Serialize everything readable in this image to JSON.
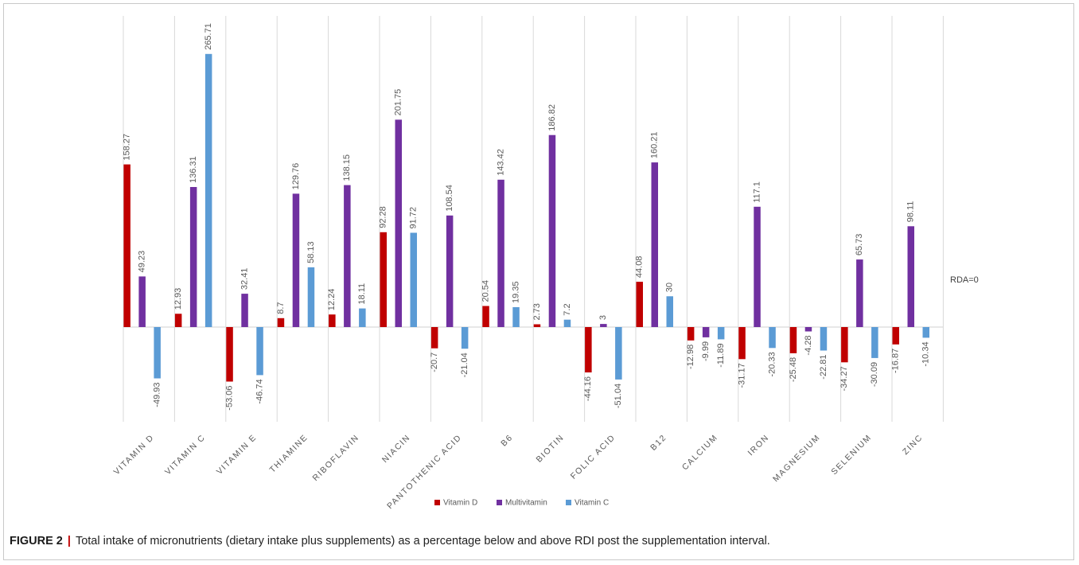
{
  "chart_data": {
    "type": "bar",
    "categories": [
      "VITAMIN D",
      "VITAMIN C",
      "VITAMIN E",
      "THIAMINE",
      "RIBOFLAVIN",
      "NIACIN",
      "PANTOTHENIC ACID",
      "B6",
      "BIOTIN",
      "FOLIC ACID",
      "B12",
      "CALCIUM",
      "IRON",
      "MAGNESIUM",
      "SELENIUM",
      "ZINC"
    ],
    "series": [
      {
        "name": "Vitamin D",
        "color": "#c00000",
        "values": [
          158.27,
          12.93,
          -53.06,
          8.7,
          12.24,
          92.28,
          -20.7,
          20.54,
          2.73,
          -44.16,
          44.08,
          -12.98,
          -31.17,
          -25.48,
          -34.27,
          -16.87
        ]
      },
      {
        "name": "Multivitamin",
        "color": "#7030a0",
        "values": [
          49.23,
          136.31,
          32.41,
          129.76,
          138.15,
          201.75,
          108.54,
          143.42,
          186.82,
          3,
          160.21,
          -9.99,
          117.1,
          -4.28,
          65.73,
          98.11
        ]
      },
      {
        "name": "Vitamin C",
        "color": "#5b9bd5",
        "values": [
          -49.93,
          265.71,
          -46.74,
          58.13,
          18.11,
          91.72,
          -21.04,
          19.35,
          7.2,
          -51.04,
          30,
          -11.89,
          -20.33,
          -22.81,
          -30.09,
          -10.34
        ]
      }
    ],
    "annotation": "RDA=0",
    "legend_position": "bottom",
    "grid": "vertical category separators"
  },
  "caption": {
    "label": "FIGURE 2",
    "separator": "|",
    "text": "Total intake of micronutrients (dietary intake plus supplements) as a percentage below and above RDI post the supplementation interval."
  }
}
